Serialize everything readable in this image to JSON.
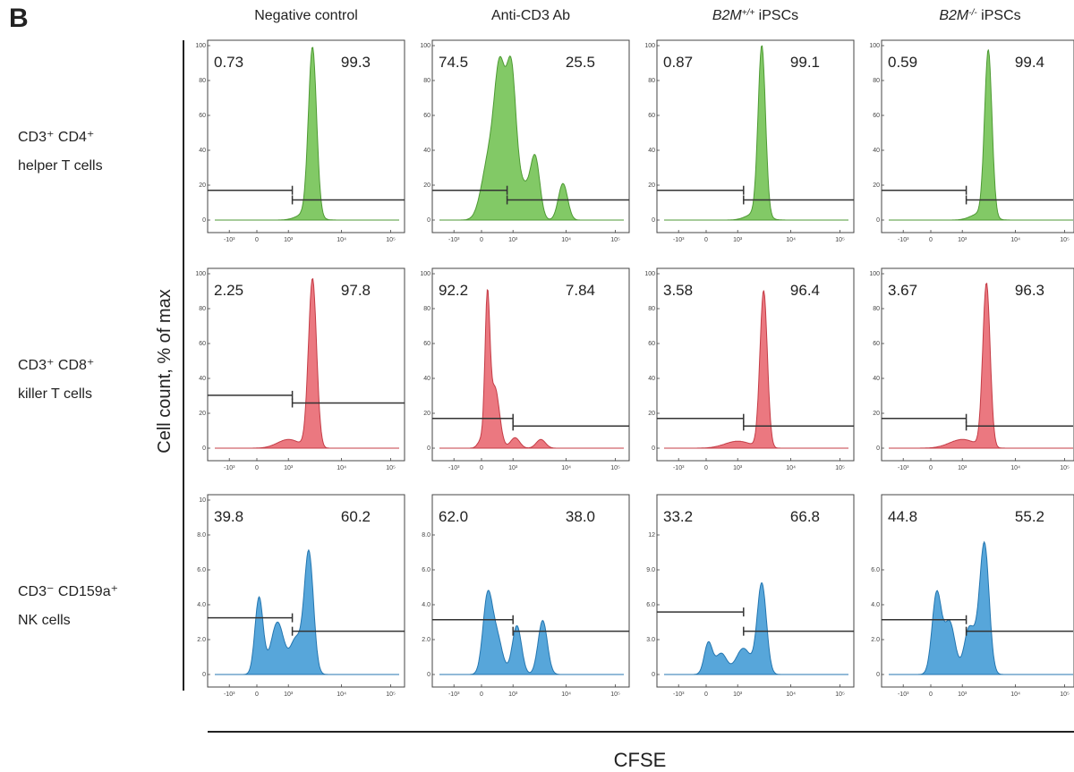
{
  "figure": {
    "panel_letter": "B"
  },
  "chart_data": {
    "type": "histogram-grid",
    "xlabel": "CFSE",
    "ylabel": "Cell count, % of max",
    "x_scale": "biexponential",
    "x_tick_labels": [
      "-10³",
      "0",
      "10³",
      "10⁴",
      "10⁵"
    ],
    "columns": [
      {
        "label": "Negative control",
        "italic_part": ""
      },
      {
        "label": "Anti-CD3 Ab",
        "italic_part": ""
      },
      {
        "label": "iPSCs",
        "italic_part": "B2M",
        "superscript": "+/+"
      },
      {
        "label": "iPSCs",
        "italic_part": "B2M",
        "superscript": "-/-"
      }
    ],
    "rows": [
      {
        "line1": "CD3⁺ CD4⁺",
        "line2": "helper T cells",
        "color": "#6cbf4b",
        "stroke": "#4e9a34",
        "y_tick_labels": [
          [
            "0",
            "20",
            "40",
            "60",
            "80",
            "100"
          ],
          [
            "0",
            "20",
            "40",
            "60",
            "80",
            "100"
          ],
          [
            "0",
            "20",
            "40",
            "60",
            "80",
            "100"
          ],
          [
            "0",
            "20",
            "40",
            "60",
            "80",
            "100"
          ]
        ]
      },
      {
        "line1": "CD3⁺ CD8⁺",
        "line2": "killer T cells",
        "color": "#e8606a",
        "stroke": "#c43c46",
        "y_tick_labels": [
          [
            "0",
            "20",
            "40",
            "60",
            "80",
            "100"
          ],
          [
            "0",
            "20",
            "40",
            "60",
            "80",
            "100"
          ],
          [
            "0",
            "20",
            "40",
            "60",
            "80",
            "100"
          ],
          [
            "0",
            "20",
            "40",
            "60",
            "80",
            "100"
          ]
        ]
      },
      {
        "line1": "CD3⁻ CD159a⁺",
        "line2": "NK cells",
        "color": "#3a97d4",
        "stroke": "#2476b0",
        "y_tick_labels": [
          [
            "0",
            "2.0",
            "4.0",
            "6.0",
            "8.0",
            "10"
          ],
          [
            "0",
            "2.0",
            "4.0",
            "6.0",
            "8.0"
          ],
          [
            "0",
            "3.0",
            "6.0",
            "9.0",
            "12"
          ],
          [
            "0",
            "2.0",
            "4.0",
            "6.0"
          ]
        ]
      }
    ],
    "gates": [
      [
        {
          "left": "0.73",
          "right": "99.3"
        },
        {
          "left": "74.5",
          "right": "25.5"
        },
        {
          "left": "0.87",
          "right": "99.1"
        },
        {
          "left": "0.59",
          "right": "99.4"
        }
      ],
      [
        {
          "left": "2.25",
          "right": "97.8"
        },
        {
          "left": "92.2",
          "right": "7.84"
        },
        {
          "left": "3.58",
          "right": "96.4"
        },
        {
          "left": "3.67",
          "right": "96.3"
        }
      ],
      [
        {
          "left": "39.8",
          "right": "60.2"
        },
        {
          "left": "62.0",
          "right": "38.0"
        },
        {
          "left": "33.2",
          "right": "66.8"
        },
        {
          "left": "44.8",
          "right": "55.2"
        }
      ]
    ]
  }
}
